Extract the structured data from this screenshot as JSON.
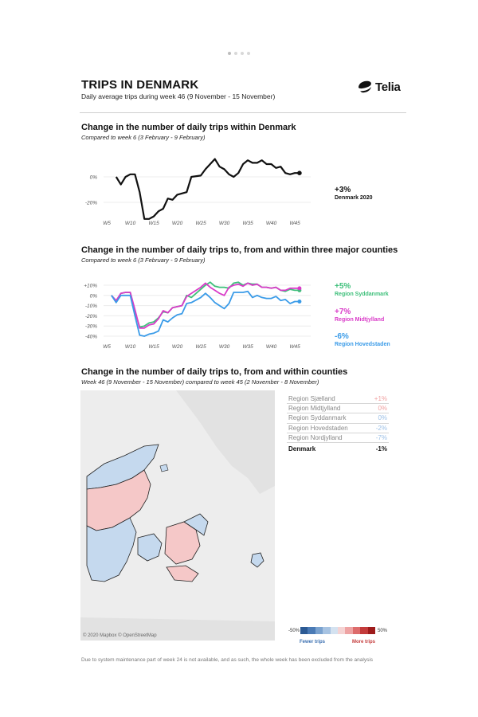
{
  "header": {
    "title": "TRIPS IN DENMARK",
    "subtitle": "Daily average trips during week 46 (9 November - 15 November)",
    "logo_text": "Telia"
  },
  "colors": {
    "black": "#111111",
    "green": "#3dbf7a",
    "magenta": "#d93bc8",
    "blue": "#3a9be8",
    "increase": "#f5c8c8",
    "decrease": "#c5d9ee"
  },
  "section1": {
    "title": "Change in the number of daily trips within Denmark",
    "subtitle": "Compared to week 6 (3 February - 9 February)",
    "annotation_value": "+3%",
    "annotation_label": "Denmark 2020"
  },
  "section2": {
    "title": "Change in the number of daily trips to, from and within three major counties",
    "subtitle": "Compared to week 6 (3 February - 9 February)",
    "annotations": [
      {
        "value": "+5%",
        "label": "Region Syddanmark",
        "color": "#3dbf7a"
      },
      {
        "value": "+7%",
        "label": "Region Midtjylland",
        "color": "#d93bc8"
      },
      {
        "value": "-6%",
        "label": "Region Hovedstaden",
        "color": "#3a9be8"
      }
    ]
  },
  "section3": {
    "title": "Change in the number of daily trips to, from and within counties",
    "subtitle": "Week 46 (9 November - 15 November) compared to week 45 (2 November - 8 November)",
    "regions": [
      {
        "name": "Region Sjælland",
        "value": "+1%"
      },
      {
        "name": "Region Midtjylland",
        "value": "0%"
      },
      {
        "name": "Region Syddanmark",
        "value": "0%"
      },
      {
        "name": "Region Hovedstaden",
        "value": "-2%"
      },
      {
        "name": "Region Nordjylland",
        "value": "-7%"
      }
    ],
    "total": {
      "name": "Denmark",
      "value": "-1%"
    },
    "legend_min": "-50%",
    "legend_max": "50%",
    "legend_fewer": "Fewer trips",
    "legend_more": "More trips",
    "attribution": "© 2020 Mapbox © OpenStreetMap"
  },
  "footer": "Due to system maintenance part of week 24 is not available, and as such, the whole week has been excluded from the analysis",
  "chart_data": [
    {
      "type": "line",
      "title": "Change in the number of daily trips within Denmark",
      "x_ticks": [
        "W5",
        "W10",
        "W15",
        "W20",
        "W25",
        "W30",
        "W35",
        "W40",
        "W45"
      ],
      "y_ticks": [
        "0%",
        "-20%"
      ],
      "ylim": [
        -35,
        15
      ],
      "weeks": [
        7,
        8,
        9,
        10,
        11,
        12,
        13,
        14,
        15,
        16,
        17,
        18,
        19,
        20,
        21,
        22,
        23,
        25,
        26,
        27,
        28,
        29,
        30,
        31,
        32,
        33,
        34,
        35,
        36,
        37,
        38,
        39,
        40,
        41,
        42,
        43,
        44,
        45,
        46
      ],
      "series": [
        {
          "name": "Denmark 2020",
          "color": "#111111",
          "values": [
            0,
            -6,
            0,
            2,
            2,
            -12,
            -33,
            -33,
            -31,
            -27,
            -25,
            -17,
            -18,
            -14,
            -13,
            -12,
            0,
            1,
            6,
            10,
            14,
            8,
            6,
            2,
            0,
            3,
            10,
            13,
            11,
            11,
            13,
            10,
            10,
            7,
            8,
            3,
            2,
            3,
            3
          ]
        }
      ]
    },
    {
      "type": "line",
      "title": "Change in the number of daily trips to, from and within three major counties",
      "x_ticks": [
        "W5",
        "W10",
        "W15",
        "W20",
        "W25",
        "W30",
        "W35",
        "W40",
        "W45"
      ],
      "y_ticks": [
        "+10%",
        "0%",
        "-10%",
        "-20%",
        "-30%",
        "-40%"
      ],
      "ylim": [
        -40,
        10
      ],
      "weeks": [
        6,
        7,
        8,
        9,
        10,
        11,
        12,
        13,
        14,
        15,
        16,
        17,
        18,
        19,
        20,
        21,
        22,
        23,
        25,
        26,
        27,
        28,
        29,
        30,
        31,
        32,
        33,
        34,
        35,
        36,
        37,
        38,
        39,
        40,
        41,
        42,
        43,
        44,
        45,
        46
      ],
      "series": [
        {
          "name": "Region Syddanmark",
          "color": "#3dbf7a",
          "values": [
            0,
            -6,
            2,
            3,
            3,
            -16,
            -31,
            -30,
            -27,
            -26,
            -22,
            -16,
            -17,
            -12,
            -11,
            -10,
            0,
            -2,
            6,
            10,
            13,
            9,
            8,
            8,
            7,
            12,
            13,
            10,
            12,
            11,
            11,
            8,
            8,
            7,
            8,
            5,
            4,
            6,
            5,
            5
          ]
        },
        {
          "name": "Region Midtjylland",
          "color": "#d93bc8",
          "values": [
            0,
            -5,
            2,
            3,
            3,
            -14,
            -32,
            -32,
            -29,
            -28,
            -23,
            -15,
            -17,
            -12,
            -11,
            -10,
            -1,
            2,
            8,
            12,
            8,
            5,
            2,
            0,
            8,
            10,
            11,
            9,
            12,
            10,
            11,
            8,
            8,
            7,
            8,
            5,
            5,
            7,
            7,
            7
          ]
        },
        {
          "name": "Region Hovedstaden",
          "color": "#3a9be8",
          "values": [
            0,
            -7,
            0,
            0,
            0,
            -20,
            -39,
            -40,
            -38,
            -37,
            -35,
            -24,
            -26,
            -22,
            -19,
            -18,
            -8,
            -7,
            -2,
            2,
            -2,
            -7,
            -10,
            -13,
            -8,
            3,
            3,
            3,
            4,
            -2,
            0,
            -2,
            -3,
            -3,
            -1,
            -5,
            -4,
            -8,
            -6,
            -6
          ]
        }
      ]
    }
  ]
}
